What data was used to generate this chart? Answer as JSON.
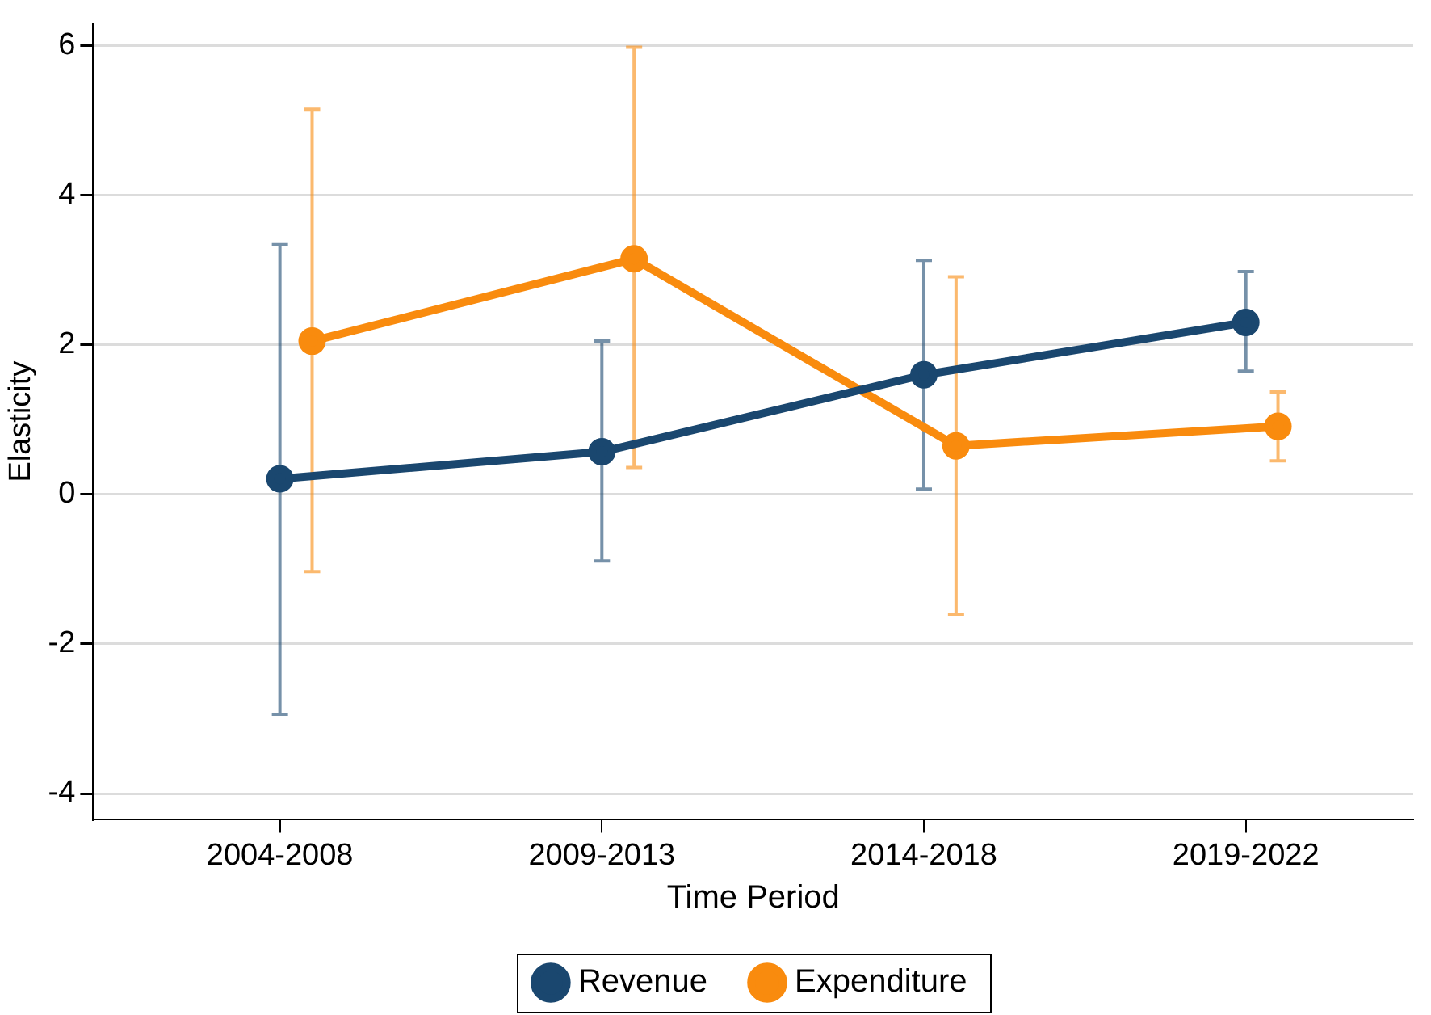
{
  "chart_data": {
    "type": "line",
    "xlabel": "Time Period",
    "ylabel": "Elasticity",
    "categories": [
      "2004-2008",
      "2009-2013",
      "2014-2018",
      "2019-2022"
    ],
    "ylim": [
      -4.35,
      6.3
    ],
    "yticks": [
      -4,
      -2,
      0,
      2,
      4,
      6
    ],
    "series": [
      {
        "name": "Revenue",
        "color": "#1a476f",
        "values": [
          0.21,
          0.57,
          1.6,
          2.3
        ],
        "errors": [
          [
            -2.94,
            3.34
          ],
          [
            -0.89,
            2.05
          ],
          [
            0.07,
            3.13
          ],
          [
            1.65,
            2.98
          ]
        ]
      },
      {
        "name": "Expenditure",
        "color": "#f98b0e",
        "values": [
          2.05,
          3.15,
          0.65,
          0.91
        ],
        "errors": [
          [
            -1.03,
            5.15
          ],
          [
            0.36,
            5.98
          ],
          [
            -1.6,
            2.91
          ],
          [
            0.45,
            1.37
          ]
        ]
      }
    ],
    "grid": "y",
    "legend": "bottom",
    "marker": "circle",
    "line_style": "solid"
  }
}
